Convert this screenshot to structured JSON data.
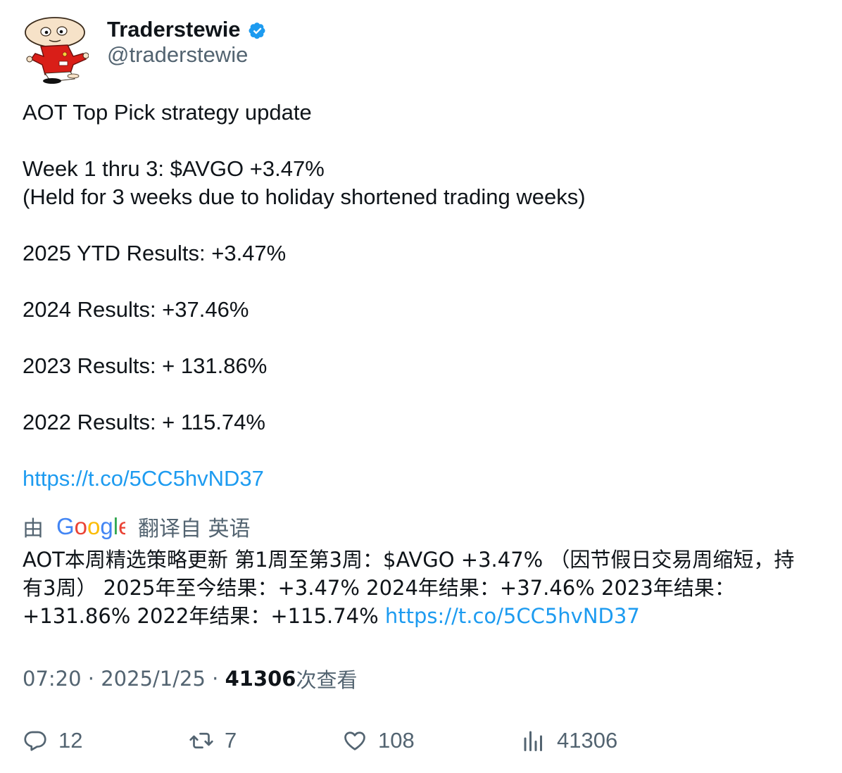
{
  "author": {
    "display_name": "Traderstewie",
    "handle": "@traderstewie",
    "verified_icon": "verified-badge-icon",
    "verified_color": "#1d9bf0"
  },
  "tweet": {
    "lines": [
      "AOT Top Pick strategy update",
      "",
      "Week 1 thru 3: $AVGO +3.47%",
      "(Held for 3 weeks due to holiday shortened trading weeks)",
      "",
      "2025 YTD Results: +3.47%",
      "",
      "2024 Results: +37.46%",
      "",
      "2023 Results: + 131.86%",
      "",
      "2022 Results: + 115.74%",
      ""
    ],
    "link": "https://t.co/5CC5hvND37"
  },
  "translation": {
    "by_prefix": "由",
    "google_logo": "Google",
    "translated_from": "翻译自 英语",
    "text": "AOT本周精选策略更新 第1周至第3周：$AVGO +3.47% （因节假日交易周缩短，持有3周） 2025年至今结果：+3.47% 2024年结果：+37.46% 2023年结果：+131.86% 2022年结果：+115.74% ",
    "link": "https://t.co/5CC5hvND37"
  },
  "meta": {
    "time": "07:20",
    "separator": " · ",
    "date": "2025/1/25",
    "views_count": "41306",
    "views_label": "次查看"
  },
  "actions": {
    "replies": "12",
    "retweets": "7",
    "likes": "108",
    "views": "41306"
  },
  "colors": {
    "text_primary": "#0f1419",
    "text_secondary": "#536471",
    "link": "#1d9bf0"
  }
}
